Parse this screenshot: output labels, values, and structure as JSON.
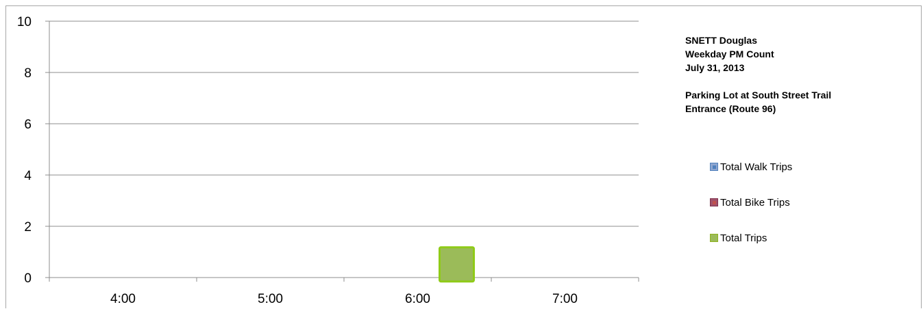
{
  "chart_data": {
    "type": "line",
    "categories": [
      "4:00",
      "5:00",
      "6:00",
      "7:00"
    ],
    "ylim": [
      0,
      10
    ],
    "yticks": [
      0,
      2,
      4,
      6,
      8,
      10
    ],
    "grid": true,
    "legend_position": "right",
    "series": [
      {
        "name": "Total Walk Trips",
        "values": [
          0,
          0,
          0,
          0
        ],
        "color": "#4f81bd"
      },
      {
        "name": "Total Bike Trips",
        "values": [
          0,
          0,
          0,
          0
        ],
        "color": "#c0504d"
      },
      {
        "name": "Total Trips",
        "values": [
          0,
          0,
          1,
          0
        ],
        "color": "#9bbb59"
      }
    ]
  },
  "info": {
    "line1": "SNETT Douglas",
    "line2": "Weekday PM Count",
    "line3": "July 31, 2013",
    "line4": "Parking Lot at South Street Trail",
    "line5": "Entrance (Route 96)"
  },
  "legend": {
    "walk": "Total Walk Trips",
    "bike": "Total Bike Trips",
    "total": "Total Trips"
  }
}
